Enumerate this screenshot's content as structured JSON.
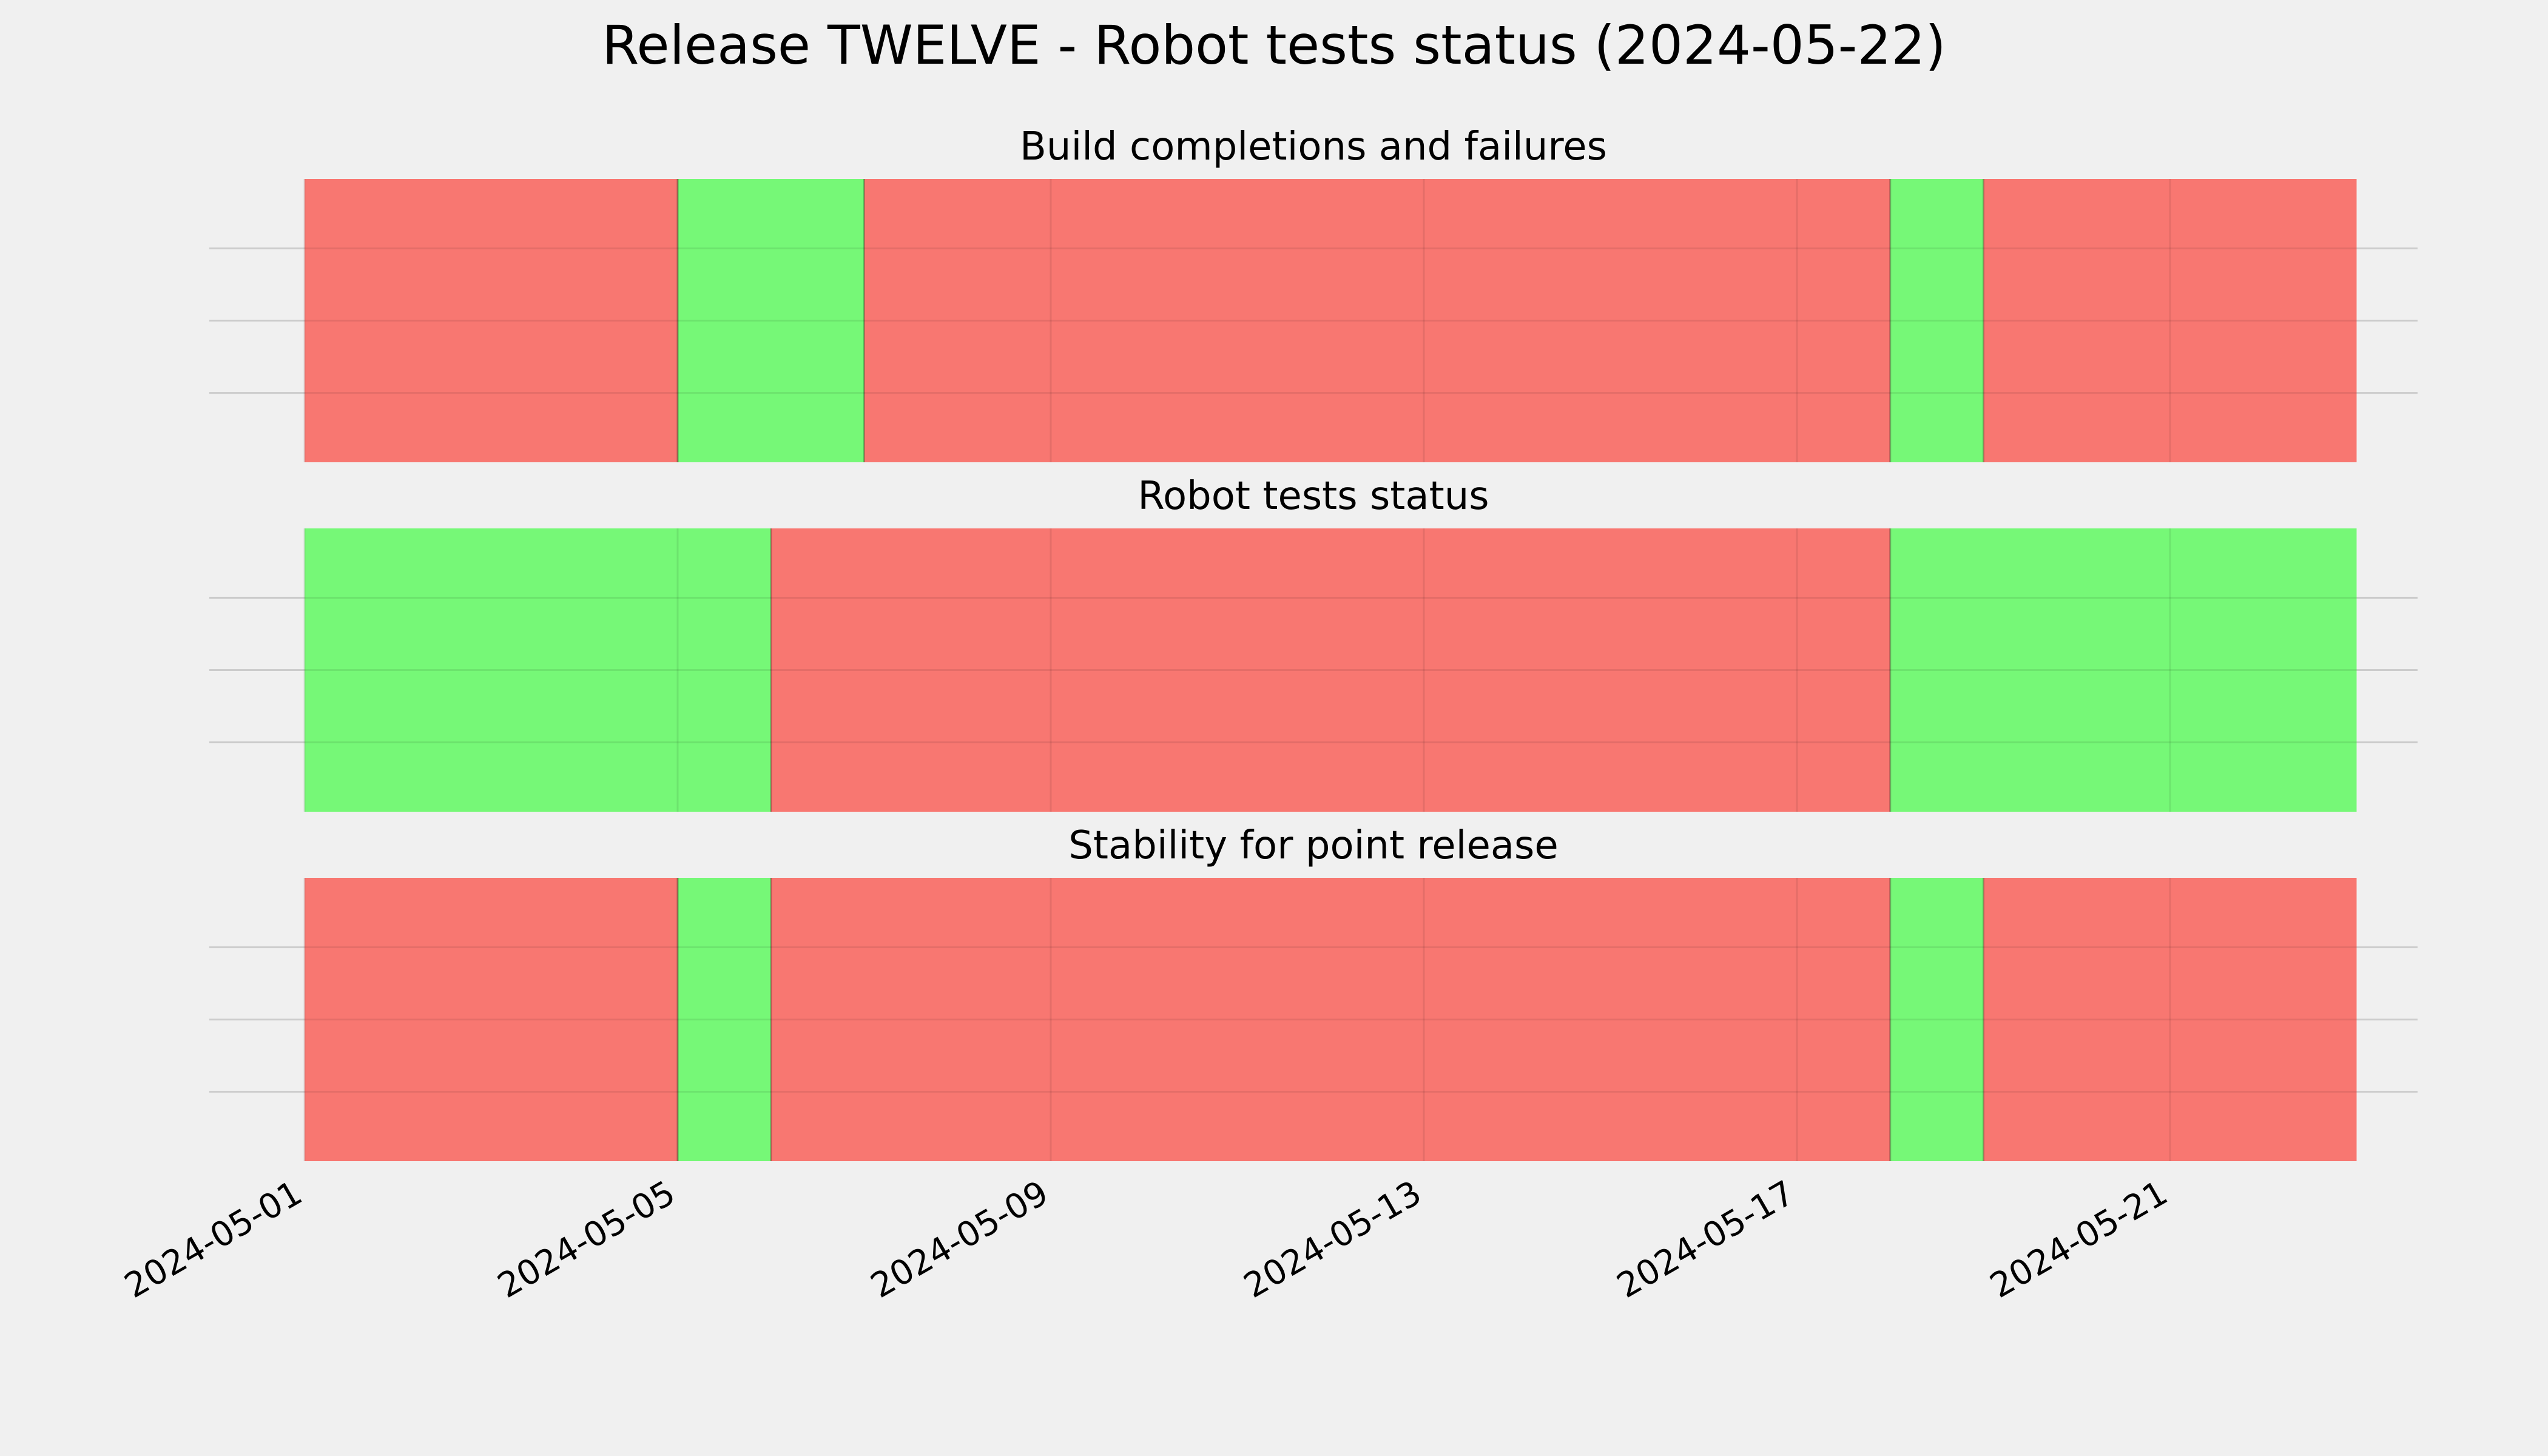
{
  "title": "Release TWELVE - Robot tests status (2024-05-22)",
  "colors": {
    "background": "#f0f0f0",
    "fail": "#f87771",
    "pass": "#76f877",
    "grid": "#cccccc",
    "text": "#000000"
  },
  "chart_data": {
    "type": "timeline",
    "x_axis": {
      "type": "date",
      "range": [
        "2024-05-01",
        "2024-05-23"
      ],
      "tick_labels": [
        "2024-05-01",
        "2024-05-05",
        "2024-05-09",
        "2024-05-13",
        "2024-05-17",
        "2024-05-21"
      ],
      "tick_label_rotation": 30
    },
    "grid": true,
    "legend": null,
    "panels": [
      {
        "title": "Build completions and failures",
        "segments": [
          {
            "start": "2024-05-01",
            "end": "2024-05-05",
            "status": "fail"
          },
          {
            "start": "2024-05-05",
            "end": "2024-05-07",
            "status": "pass"
          },
          {
            "start": "2024-05-07",
            "end": "2024-05-18",
            "status": "fail"
          },
          {
            "start": "2024-05-18",
            "end": "2024-05-19",
            "status": "pass"
          },
          {
            "start": "2024-05-19",
            "end": "2024-05-23",
            "status": "fail"
          }
        ]
      },
      {
        "title": "Robot tests status",
        "segments": [
          {
            "start": "2024-05-01",
            "end": "2024-05-06",
            "status": "pass"
          },
          {
            "start": "2024-05-06",
            "end": "2024-05-18",
            "status": "fail"
          },
          {
            "start": "2024-05-18",
            "end": "2024-05-23",
            "status": "pass"
          }
        ]
      },
      {
        "title": "Stability for point release",
        "segments": [
          {
            "start": "2024-05-01",
            "end": "2024-05-05",
            "status": "fail"
          },
          {
            "start": "2024-05-05",
            "end": "2024-05-06",
            "status": "pass"
          },
          {
            "start": "2024-05-06",
            "end": "2024-05-18",
            "status": "fail"
          },
          {
            "start": "2024-05-18",
            "end": "2024-05-19",
            "status": "pass"
          },
          {
            "start": "2024-05-19",
            "end": "2024-05-23",
            "status": "fail"
          }
        ]
      }
    ]
  }
}
